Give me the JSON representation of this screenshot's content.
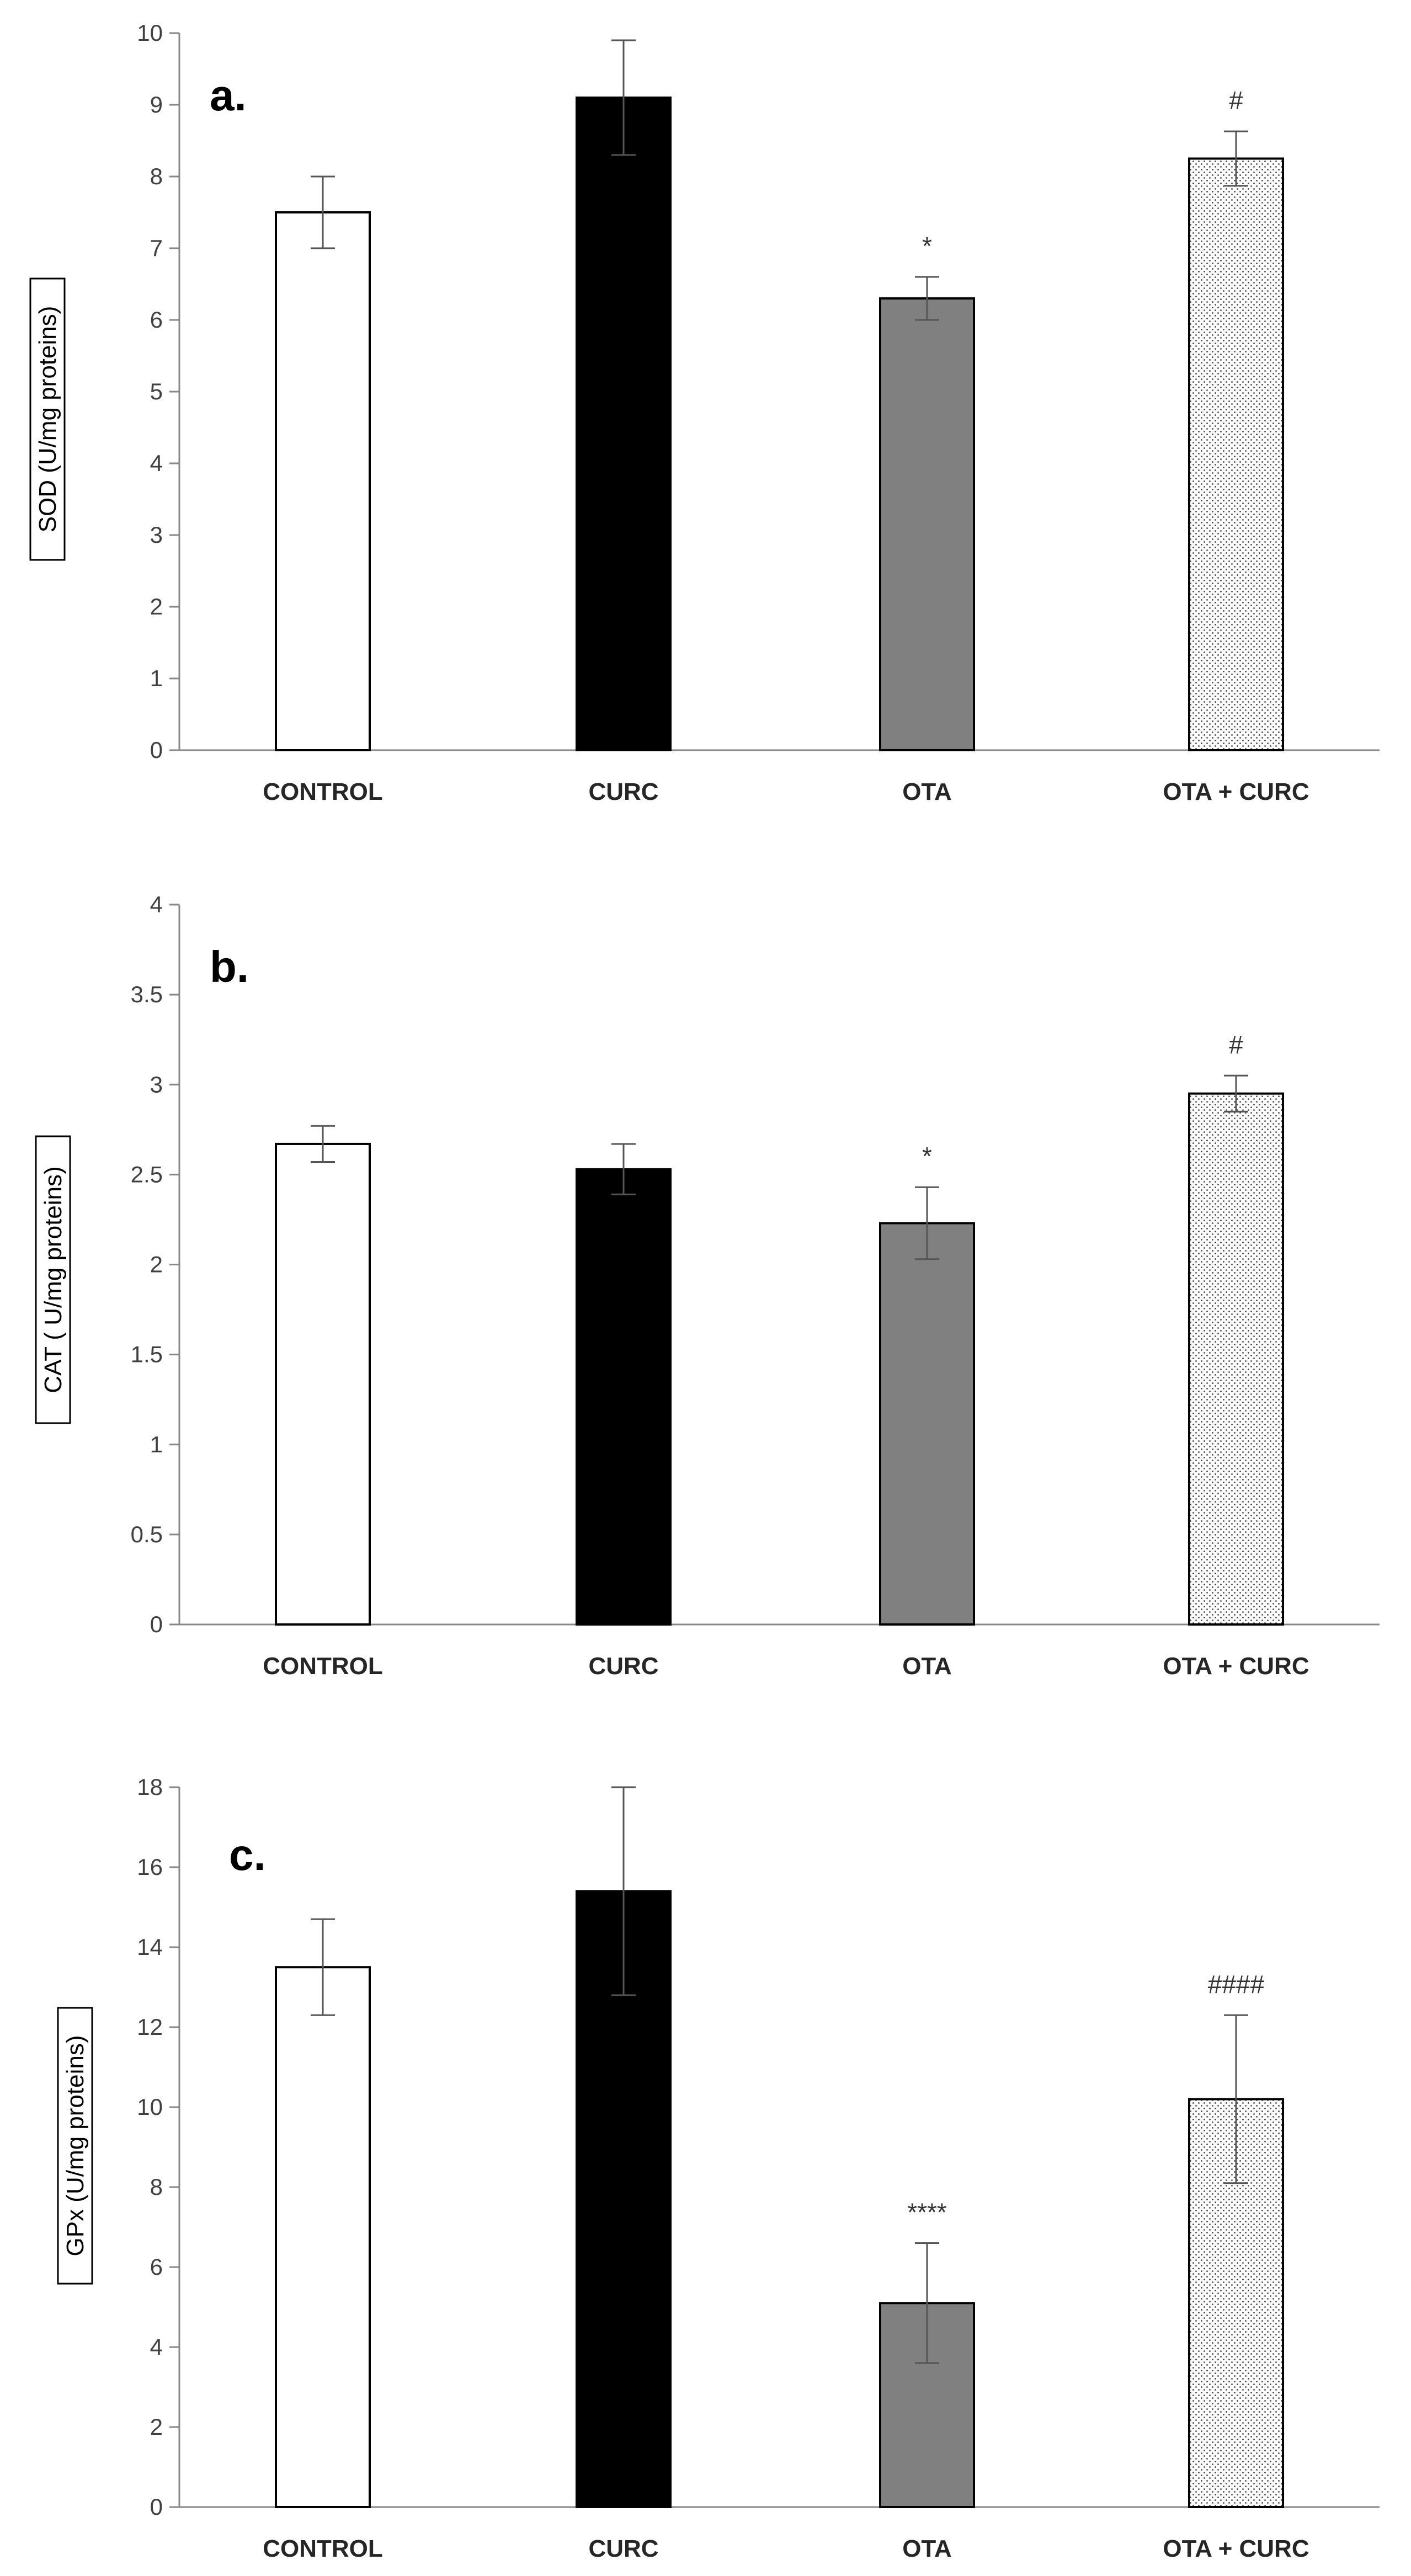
{
  "chart_data": [
    {
      "type": "bar",
      "panel_label": "a.",
      "ylabel": "SOD (U/mg proteins)",
      "categories": [
        "CONTROL",
        "CURC",
        "OTA",
        "OTA + CURC"
      ],
      "values": [
        7.5,
        9.1,
        6.3,
        8.25
      ],
      "errors": [
        0.5,
        0.8,
        0.3,
        0.38
      ],
      "significance": [
        "",
        "",
        "*",
        "#"
      ],
      "ylim": [
        0,
        10
      ],
      "yticks": [
        "0",
        "1",
        "2",
        "3",
        "4",
        "5",
        "6",
        "7",
        "8",
        "9",
        "10"
      ],
      "fills": [
        "white",
        "black",
        "gray",
        "dots"
      ]
    },
    {
      "type": "bar",
      "panel_label": "b.",
      "ylabel": "CAT ( U/mg proteins)",
      "categories": [
        "CONTROL",
        "CURC",
        "OTA",
        "OTA + CURC"
      ],
      "values": [
        2.67,
        2.53,
        2.23,
        2.95
      ],
      "errors": [
        0.1,
        0.14,
        0.2,
        0.1
      ],
      "significance": [
        "",
        "",
        "*",
        "#"
      ],
      "ylim": [
        0,
        4
      ],
      "yticks": [
        "0",
        "0.5",
        "1",
        "1.5",
        "2",
        "2.5",
        "3",
        "3.5",
        "4"
      ],
      "fills": [
        "white",
        "black",
        "gray",
        "dots"
      ]
    },
    {
      "type": "bar",
      "panel_label": "c.",
      "ylabel": "GPx (U/mg proteins)",
      "categories": [
        "CONTROL",
        "CURC",
        "OTA",
        "OTA + CURC"
      ],
      "values": [
        13.5,
        15.4,
        5.1,
        10.2
      ],
      "errors": [
        1.2,
        2.6,
        1.5,
        2.1
      ],
      "significance": [
        "",
        "",
        "****",
        "####"
      ],
      "ylim": [
        0,
        18
      ],
      "yticks": [
        "0",
        "2",
        "4",
        "6",
        "8",
        "10",
        "12",
        "14",
        "16",
        "18"
      ],
      "fills": [
        "white",
        "black",
        "gray",
        "dots"
      ]
    }
  ],
  "colors": {
    "white": "#ffffff",
    "black": "#000000",
    "gray": "#808080",
    "axis": "#888888"
  }
}
